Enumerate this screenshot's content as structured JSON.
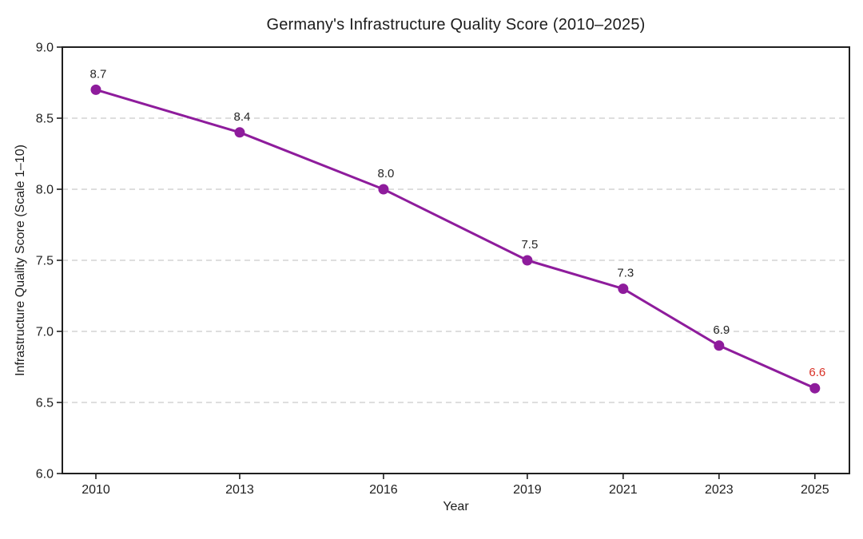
{
  "chart_data": {
    "type": "line",
    "title": "Germany's Infrastructure Quality Score (2010–2025)",
    "xlabel": "Year",
    "ylabel": "Infrastructure Quality Score (Scale 1–10)",
    "x": [
      2010,
      2013,
      2016,
      2019,
      2021,
      2023,
      2025
    ],
    "values": [
      8.7,
      8.4,
      8.0,
      7.5,
      7.3,
      6.9,
      6.6
    ],
    "point_labels": [
      "8.7",
      "8.4",
      "8.0",
      "7.5",
      "7.3",
      "6.9",
      "6.6"
    ],
    "xticks": [
      2010,
      2013,
      2016,
      2019,
      2021,
      2023,
      2025
    ],
    "yticks": [
      6.0,
      6.5,
      7.0,
      7.5,
      8.0,
      8.5,
      9.0
    ],
    "xlim": [
      2009.3,
      2025.72
    ],
    "ylim": [
      6.0,
      9.0
    ],
    "grid": "horizontal-dashed",
    "legend": "none",
    "colors": {
      "line": "#8E1C9C",
      "marker": "#8E1C9C",
      "point_label": "#262626",
      "last_point_label": "#D93025",
      "grid": "#C9C9C9",
      "axis": "#1F1F1F",
      "tick_label": "#1F1F1F"
    }
  }
}
